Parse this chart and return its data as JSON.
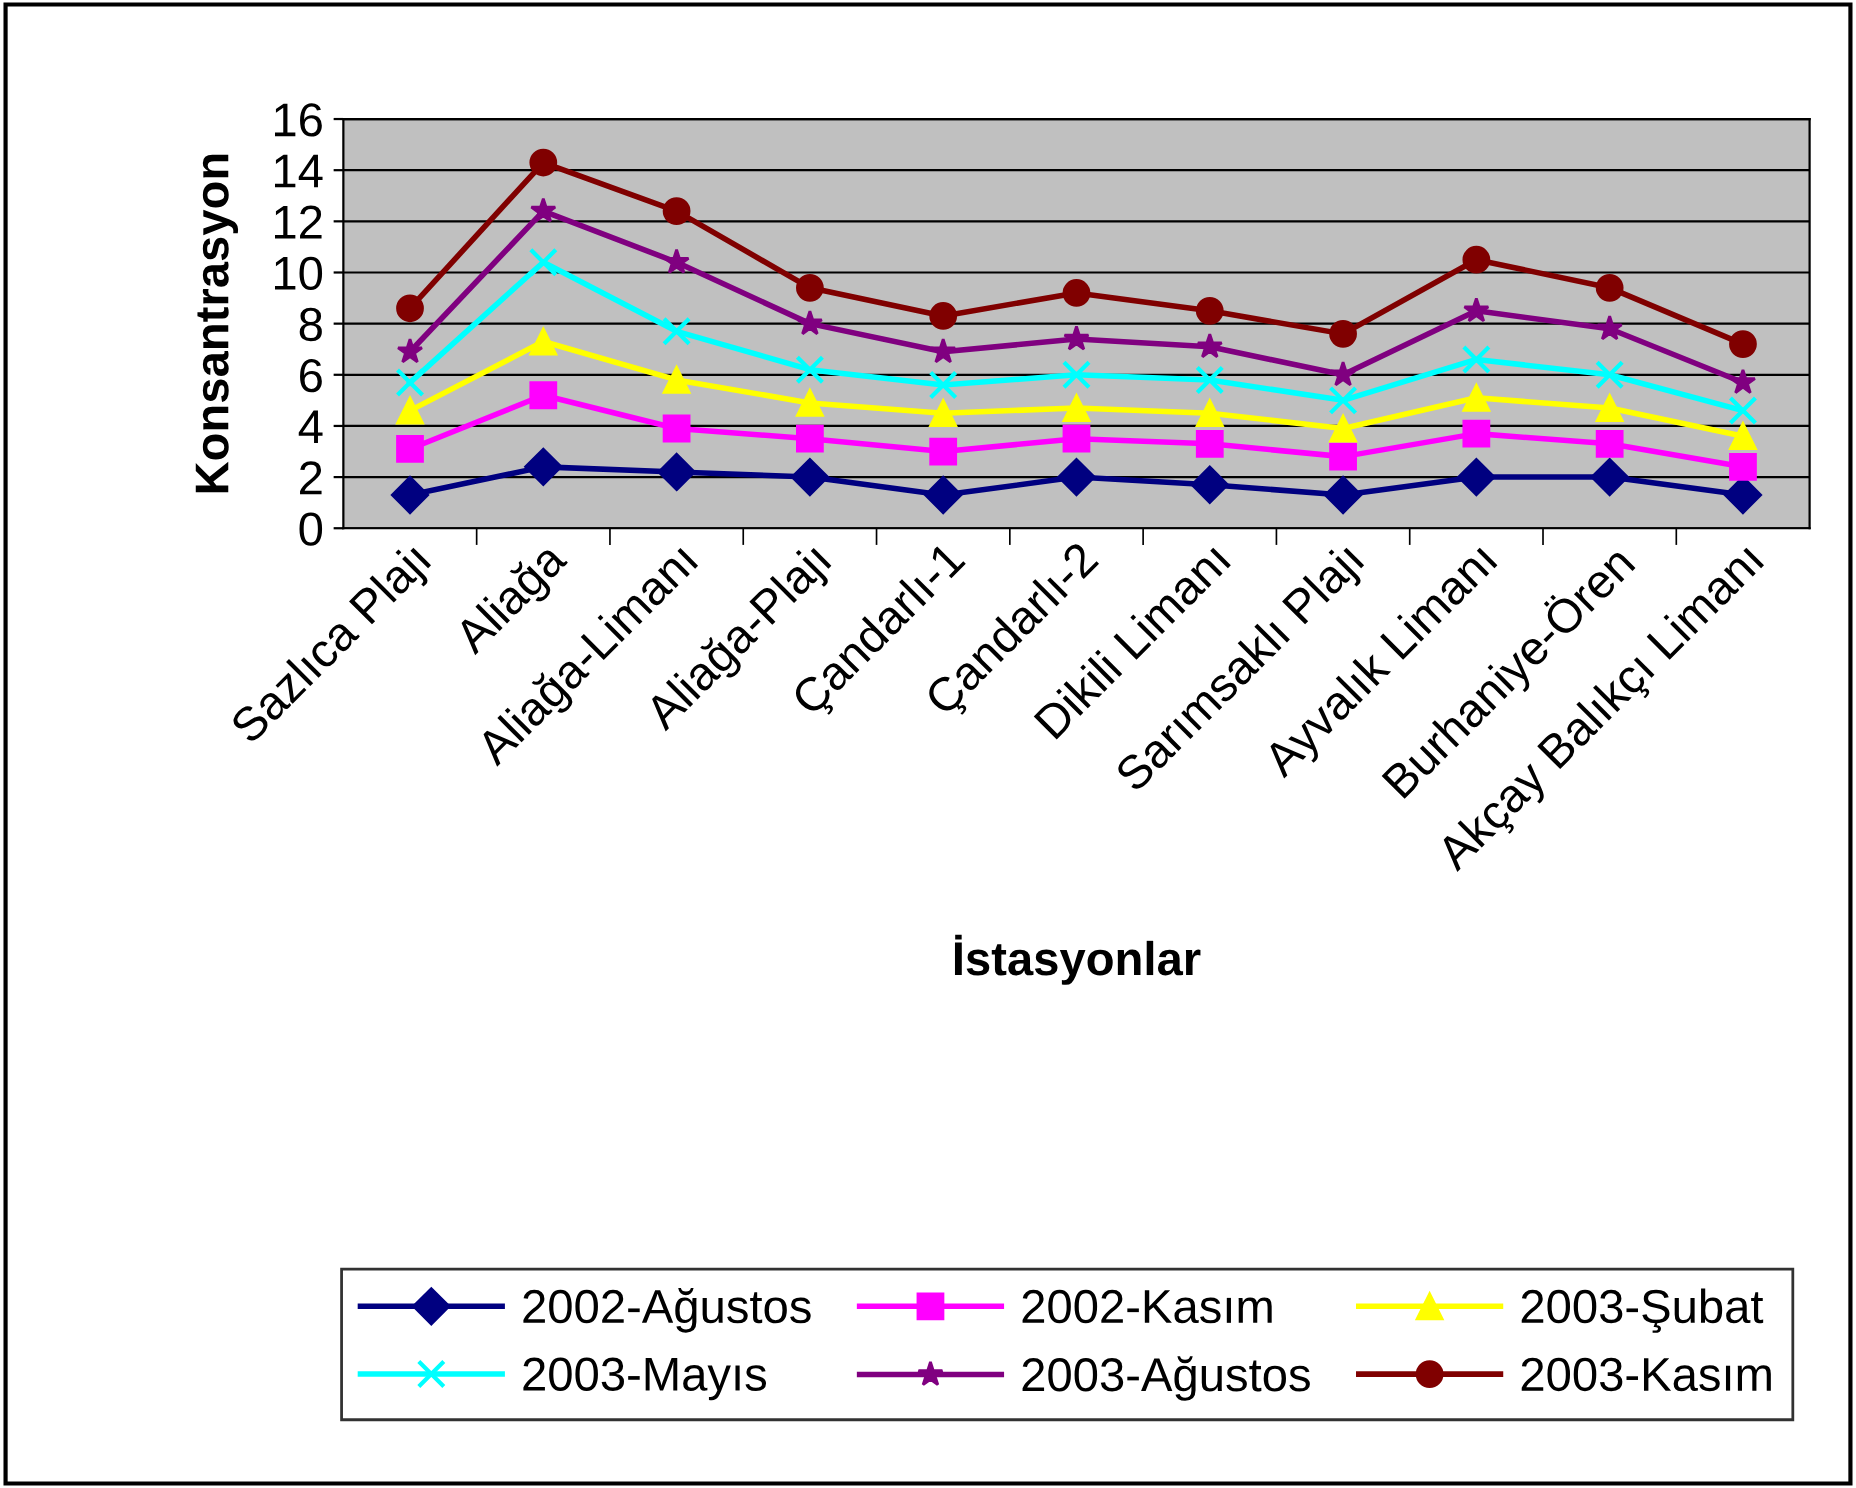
{
  "chart_data": {
    "type": "line",
    "xlabel": "İstasyonlar",
    "ylabel": "Konsantrasyon",
    "categories": [
      "Sazlıca Plajı",
      "Aliağa",
      "Aliağa-Limanı",
      "Aliağa-Plajı",
      "Çandarlı-1",
      "Çandarlı-2",
      "Dikili Limanı",
      "Sarımsaklı Plajı",
      "Ayvalık Limanı",
      "Burhaniye-Ören",
      "Akçay Balıkçı Limanı"
    ],
    "series": [
      {
        "name": "2002-Ağustos",
        "color": "#000080",
        "marker": "diamond",
        "values": [
          1.3,
          2.4,
          2.2,
          2.0,
          1.3,
          2.0,
          1.7,
          1.3,
          2.0,
          2.0,
          1.3
        ]
      },
      {
        "name": "2002-Kasım",
        "color": "#ff00ff",
        "marker": "square",
        "values": [
          3.1,
          5.2,
          3.9,
          3.5,
          3.0,
          3.5,
          3.3,
          2.8,
          3.7,
          3.3,
          2.4
        ]
      },
      {
        "name": "2003-Şubat",
        "color": "#ffff00",
        "marker": "triangle",
        "values": [
          4.6,
          7.3,
          5.8,
          4.9,
          4.5,
          4.7,
          4.5,
          3.9,
          5.1,
          4.7,
          3.6
        ]
      },
      {
        "name": "2003-Mayıs",
        "color": "#00ffff",
        "marker": "cross",
        "values": [
          5.7,
          10.4,
          7.7,
          6.2,
          5.6,
          6.0,
          5.8,
          5.0,
          6.6,
          6.0,
          4.6
        ]
      },
      {
        "name": "2003-Ağustos",
        "color": "#800080",
        "marker": "star",
        "values": [
          6.9,
          12.4,
          10.4,
          8.0,
          6.9,
          7.4,
          7.1,
          6.0,
          8.5,
          7.8,
          5.7
        ]
      },
      {
        "name": "2003-Kasım",
        "color": "#800000",
        "marker": "circle",
        "values": [
          8.6,
          14.3,
          12.4,
          9.4,
          8.3,
          9.2,
          8.5,
          7.6,
          10.5,
          9.4,
          7.2
        ]
      }
    ],
    "ylim": [
      0,
      16
    ],
    "yticks": [
      0,
      2,
      4,
      6,
      8,
      10,
      12,
      14,
      16
    ],
    "grid": "y",
    "legend": "bottom",
    "line_style": "solid"
  }
}
